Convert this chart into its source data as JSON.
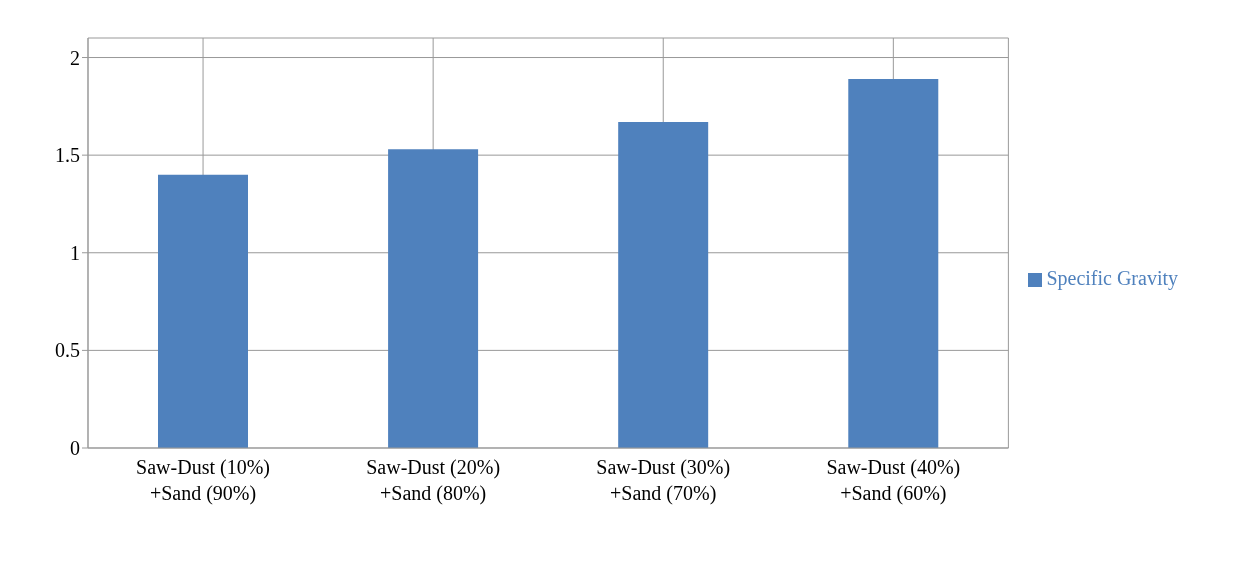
{
  "chart_data": {
    "type": "bar",
    "categories": [
      "Saw-Dust (10%) +Sand (90%)",
      "Saw-Dust (20%) +Sand (80%)",
      "Saw-Dust (30%) +Sand (70%)",
      "Saw-Dust (40%) +Sand (60%)"
    ],
    "series": [
      {
        "name": "Specific Gravity",
        "color": "#4f81bd",
        "values": [
          1.4,
          1.53,
          1.67,
          1.89
        ]
      }
    ],
    "ylim": [
      0,
      2.1
    ],
    "yticks": [
      0,
      0.5,
      1,
      1.5,
      2
    ],
    "grid": true,
    "legend": "right"
  }
}
